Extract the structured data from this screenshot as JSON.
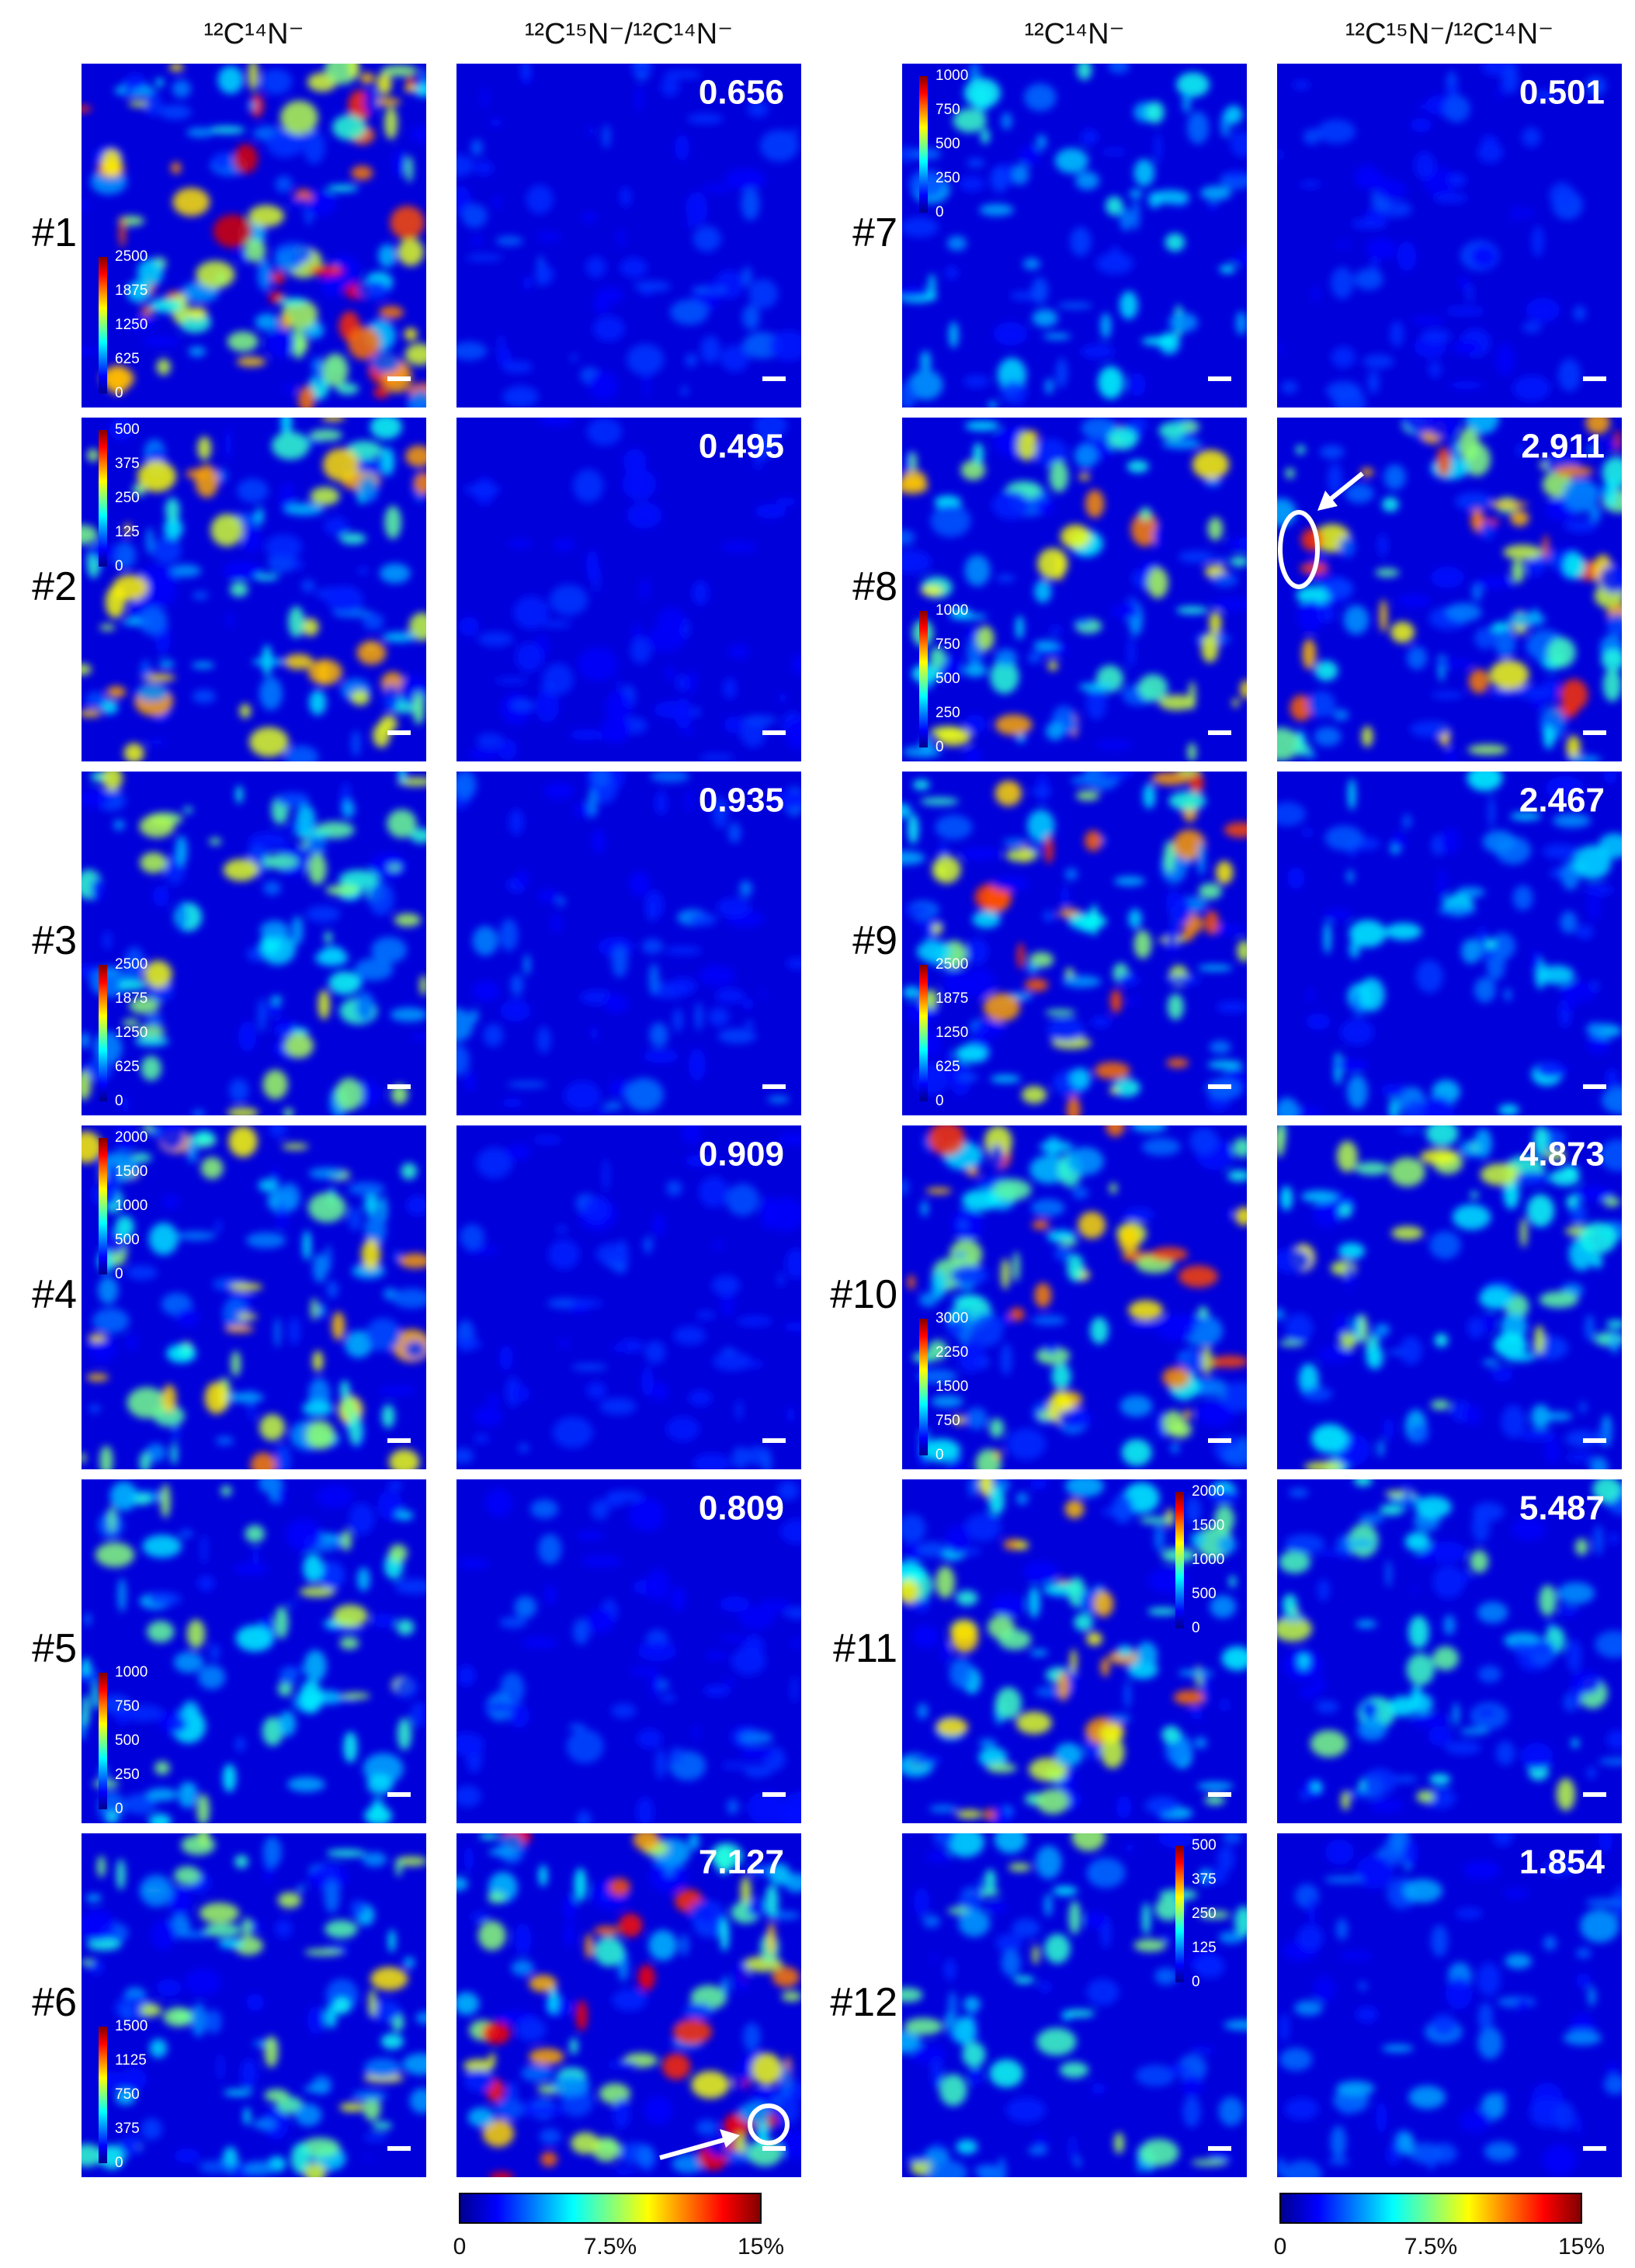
{
  "headers": [
    "¹²C¹⁴N⁻",
    "¹²C¹⁵N⁻/¹²C¹⁴N⁻",
    "¹²C¹⁴N⁻",
    "¹²C¹⁵N⁻/¹²C¹⁴N⁻"
  ],
  "rows": [
    {
      "label": "#1",
      "intensity_scale": [
        "2500",
        "1875",
        "1250",
        "625",
        "0"
      ],
      "ratio": "0.656"
    },
    {
      "label": "#2",
      "intensity_scale": [
        "500",
        "375",
        "250",
        "125",
        "0"
      ],
      "ratio": "0.495"
    },
    {
      "label": "#3",
      "intensity_scale": [
        "2500",
        "1875",
        "1250",
        "625",
        "0"
      ],
      "ratio": "0.935"
    },
    {
      "label": "#4",
      "intensity_scale": [
        "2000",
        "1500",
        "1000",
        "500",
        "0"
      ],
      "ratio": "0.909"
    },
    {
      "label": "#5",
      "intensity_scale": [
        "1000",
        "750",
        "500",
        "250",
        "0"
      ],
      "ratio": "0.809"
    },
    {
      "label": "#6",
      "intensity_scale": [
        "1500",
        "1125",
        "750",
        "375",
        "0"
      ],
      "ratio": "7.127"
    },
    {
      "label": "#7",
      "intensity_scale": [
        "1000",
        "750",
        "500",
        "250",
        "0"
      ],
      "ratio": "0.501"
    },
    {
      "label": "#8",
      "intensity_scale": [
        "1000",
        "750",
        "500",
        "250",
        "0"
      ],
      "ratio": "2.911"
    },
    {
      "label": "#9",
      "intensity_scale": [
        "2500",
        "1875",
        "1250",
        "625",
        "0"
      ],
      "ratio": "2.467"
    },
    {
      "label": "#10",
      "intensity_scale": [
        "3000",
        "2250",
        "1500",
        "750",
        "0"
      ],
      "ratio": "4.873"
    },
    {
      "label": "#11",
      "intensity_scale": [
        "2000",
        "1500",
        "1000",
        "500",
        "0"
      ],
      "ratio": "5.487"
    },
    {
      "label": "#12",
      "intensity_scale": [
        "500",
        "375",
        "250",
        "125",
        "0"
      ],
      "ratio": "1.854"
    }
  ],
  "ratio_colorbars": [
    [
      "0",
      "7.5%",
      "15%"
    ],
    [
      "0",
      "7.5%",
      "15%"
    ]
  ]
}
